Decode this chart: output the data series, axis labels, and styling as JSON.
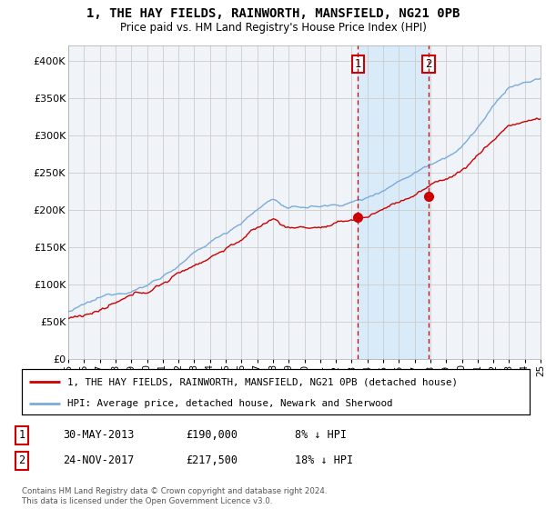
{
  "title": "1, THE HAY FIELDS, RAINWORTH, MANSFIELD, NG21 0PB",
  "subtitle": "Price paid vs. HM Land Registry's House Price Index (HPI)",
  "ylim": [
    0,
    420000
  ],
  "yticks": [
    0,
    50000,
    100000,
    150000,
    200000,
    250000,
    300000,
    350000,
    400000
  ],
  "ytick_labels": [
    "£0",
    "£50K",
    "£100K",
    "£150K",
    "£200K",
    "£250K",
    "£300K",
    "£350K",
    "£400K"
  ],
  "hpi_color": "#7aabdb",
  "price_color": "#cc0000",
  "sale_color": "#cc0000",
  "shade_color": "#d0e8f8",
  "background_color": "#f0f4f8",
  "grid_color": "#cccccc",
  "legend_label_price": "1, THE HAY FIELDS, RAINWORTH, MANSFIELD, NG21 0PB (detached house)",
  "legend_label_hpi": "HPI: Average price, detached house, Newark and Sherwood",
  "sale1_date": "30-MAY-2013",
  "sale1_price": "£190,000",
  "sale1_hpi": "8% ↓ HPI",
  "sale1_x": 2013.41,
  "sale1_y": 190000,
  "sale2_date": "24-NOV-2017",
  "sale2_price": "£217,500",
  "sale2_hpi": "18% ↓ HPI",
  "sale2_x": 2017.89,
  "sale2_y": 217500,
  "footnote": "Contains HM Land Registry data © Crown copyright and database right 2024.\nThis data is licensed under the Open Government Licence v3.0.",
  "xmin": 1995,
  "xmax": 2025,
  "seed": 12345
}
